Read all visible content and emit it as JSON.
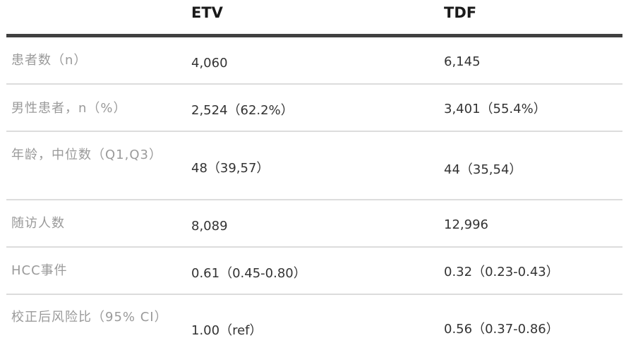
{
  "header": {
    "col_etv": "ETV",
    "col_tdf": "TDF"
  },
  "rows": [
    {
      "label": "患者数（n）",
      "etv": "4,060",
      "tdf": "6,145"
    },
    {
      "label": "男性患者，n（%）",
      "etv": "2,524（62.2%）",
      "tdf": "3,401（55.4%）"
    },
    {
      "label": "年龄，中位数（Q1,Q3）",
      "etv": "48（39,57）",
      "tdf": "44（35,54）"
    },
    {
      "label": "随访人数",
      "etv": "8,089",
      "tdf": "12,996"
    },
    {
      "label": "HCC事件",
      "etv": "0.61（0.45-0.80）",
      "tdf": "0.32（0.23-0.43）"
    },
    {
      "label": "校正后风险比（95% CI）",
      "etv": "1.00（ref）",
      "tdf": "0.56（0.37-0.86）"
    }
  ]
}
